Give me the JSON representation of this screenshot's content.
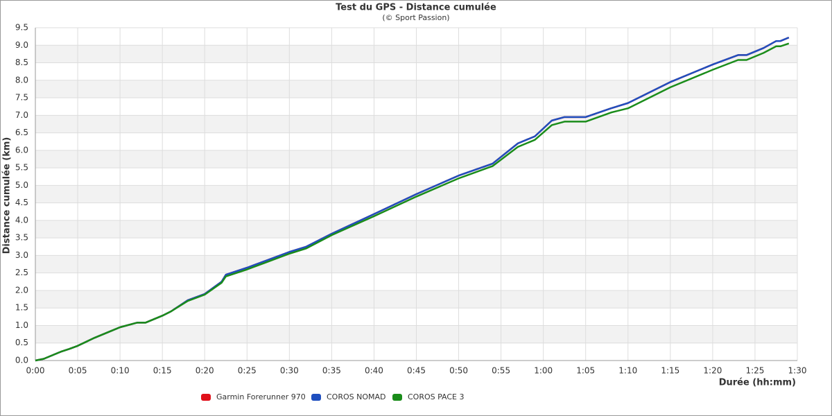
{
  "chart_data": {
    "type": "line",
    "title": "Test du GPS - Distance cumulée",
    "subtitle": "(© Sport Passion)",
    "x_label": "Durée (hh:mm)",
    "y_label": "Distance cumulée (km)",
    "xlim": [
      0,
      90
    ],
    "xticks": [
      {
        "value": 0,
        "label": "0:00"
      },
      {
        "value": 5,
        "label": "0:05"
      },
      {
        "value": 10,
        "label": "0:10"
      },
      {
        "value": 15,
        "label": "0:15"
      },
      {
        "value": 20,
        "label": "0:20"
      },
      {
        "value": 25,
        "label": "0:25"
      },
      {
        "value": 30,
        "label": "0:30"
      },
      {
        "value": 35,
        "label": "0:35"
      },
      {
        "value": 40,
        "label": "0:40"
      },
      {
        "value": 45,
        "label": "0:45"
      },
      {
        "value": 50,
        "label": "0:50"
      },
      {
        "value": 55,
        "label": "0:55"
      },
      {
        "value": 60,
        "label": "1:00"
      },
      {
        "value": 65,
        "label": "1:05"
      },
      {
        "value": 70,
        "label": "1:10"
      },
      {
        "value": 75,
        "label": "1:15"
      },
      {
        "value": 80,
        "label": "1:20"
      },
      {
        "value": 85,
        "label": "1:25"
      },
      {
        "value": 90,
        "label": "1:30"
      }
    ],
    "ylim": [
      0,
      9.5
    ],
    "yticks": [
      {
        "value": 0,
        "label": "0.0"
      },
      0.5,
      {
        "value": 1,
        "label": "1.0"
      },
      1.5,
      {
        "value": 2,
        "label": "2.0"
      },
      2.5,
      {
        "value": 3,
        "label": "3.0"
      },
      3.5,
      {
        "value": 4,
        "label": "4.0"
      },
      4.5,
      {
        "value": 5,
        "label": "5.0"
      },
      5.5,
      {
        "value": 6,
        "label": "6.0"
      },
      6.5,
      {
        "value": 7,
        "label": "7.0"
      },
      7.5,
      {
        "value": 8,
        "label": "8.0"
      },
      8.5,
      {
        "value": 9,
        "label": "9.0"
      },
      9.5
    ],
    "grid": true,
    "legend": "bottom",
    "x": [
      0,
      1,
      3,
      4,
      5,
      7,
      9,
      10,
      12,
      13,
      15,
      16,
      18,
      20,
      22,
      22.5,
      25,
      27,
      30,
      32,
      35,
      40,
      45,
      50,
      54,
      57,
      59,
      61,
      62.5,
      65,
      68,
      70,
      75,
      80,
      83,
      84,
      86,
      87.5,
      88,
      89
    ],
    "series": [
      {
        "name": "Garmin Forerunner 970",
        "color": "#e0101a",
        "values": [
          0,
          0.05,
          0.25,
          0.33,
          0.42,
          0.65,
          0.85,
          0.95,
          1.08,
          1.08,
          1.28,
          1.4,
          1.72,
          1.9,
          2.25,
          2.45,
          2.65,
          2.83,
          3.1,
          3.25,
          3.62,
          4.18,
          4.75,
          5.28,
          5.62,
          6.2,
          6.4,
          6.85,
          6.95,
          6.95,
          7.2,
          7.35,
          7.95,
          8.45,
          8.72,
          8.72,
          8.92,
          9.12,
          9.12,
          9.22
        ]
      },
      {
        "name": "COROS NOMAD",
        "color": "#1f4fbf",
        "values": [
          0,
          0.05,
          0.25,
          0.33,
          0.42,
          0.65,
          0.85,
          0.95,
          1.08,
          1.08,
          1.28,
          1.4,
          1.72,
          1.9,
          2.25,
          2.45,
          2.65,
          2.83,
          3.1,
          3.25,
          3.62,
          4.18,
          4.75,
          5.28,
          5.62,
          6.2,
          6.4,
          6.85,
          6.95,
          6.95,
          7.2,
          7.35,
          7.95,
          8.45,
          8.72,
          8.72,
          8.92,
          9.12,
          9.12,
          9.22
        ]
      },
      {
        "name": "COROS PACE 3",
        "color": "#1a8c1a",
        "values": [
          0,
          0.05,
          0.25,
          0.33,
          0.42,
          0.65,
          0.85,
          0.95,
          1.08,
          1.08,
          1.28,
          1.4,
          1.7,
          1.88,
          2.22,
          2.4,
          2.6,
          2.78,
          3.05,
          3.2,
          3.58,
          4.12,
          4.68,
          5.2,
          5.55,
          6.1,
          6.3,
          6.72,
          6.82,
          6.82,
          7.08,
          7.2,
          7.8,
          8.3,
          8.58,
          8.58,
          8.78,
          8.97,
          8.97,
          9.05
        ]
      }
    ]
  }
}
